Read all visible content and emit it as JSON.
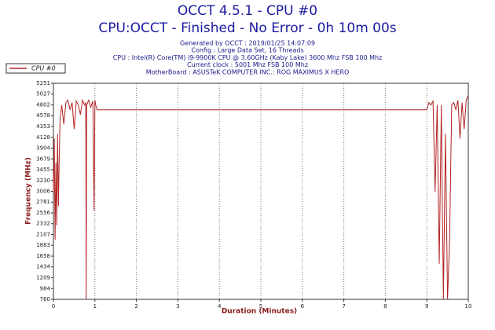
{
  "chart_data": {
    "type": "line",
    "title": "OCCT 4.5.1 - CPU #0",
    "subtitle": "CPU:OCCT - Finished - No Error - 0h 10m 00s",
    "info": [
      "Generated by OCCT : 2019/01/25 14:07:09",
      "Config : Large Data Set, 16 Threads",
      "CPU : Intel(R) Core(TM) i9-9900K CPU @ 3.60GHz (Kaby Lake) 3600 Mhz FSB 100 Mhz",
      "Current clock : 5001 Mhz FSB 100 Mhz",
      "MotherBoard : ASUSTeK COMPUTER INC.: ROG MAXIMUS X HERO"
    ],
    "x_label": "Duration (Minutes)",
    "y_label": "Frequency (MHz)",
    "x": [
      0,
      0.02,
      0.04,
      0.06,
      0.08,
      0.1,
      0.12,
      0.14,
      0.16,
      0.2,
      0.25,
      0.3,
      0.35,
      0.4,
      0.45,
      0.5,
      0.55,
      0.6,
      0.65,
      0.7,
      0.75,
      0.78,
      0.79,
      0.8,
      0.85,
      0.9,
      0.95,
      0.98,
      1.0,
      1.02,
      1.05,
      9.0,
      9.05,
      9.1,
      9.15,
      9.2,
      9.25,
      9.3,
      9.35,
      9.4,
      9.45,
      9.5,
      9.55,
      9.6,
      9.65,
      9.7,
      9.75,
      9.8,
      9.85,
      9.9,
      9.95,
      10
    ],
    "series": [
      {
        "name": "CPU #0",
        "color": "#b22222",
        "values": [
          3000,
          4100,
          2000,
          3600,
          2300,
          4200,
          2700,
          3700,
          4500,
          4800,
          4400,
          4850,
          4900,
          4700,
          4850,
          4300,
          4880,
          4800,
          4600,
          4900,
          4800,
          4850,
          760,
          4800,
          4900,
          4750,
          4880,
          2600,
          4900,
          4800,
          4700,
          4700,
          4850,
          4800,
          4880,
          3000,
          4800,
          1500,
          4800,
          760,
          4200,
          760,
          2000,
          4800,
          4850,
          4700,
          4900,
          4100,
          4850,
          4300,
          4900,
          5000
        ]
      }
    ],
    "xlim": [
      0,
      10
    ],
    "xticks": [
      0,
      1,
      2,
      3,
      4,
      5,
      6,
      7,
      8,
      9,
      10
    ],
    "ylim": [
      760,
      5251
    ],
    "yticks": [
      760,
      984,
      1209,
      1434,
      1658,
      1883,
      2107,
      2332,
      2556,
      2781,
      3006,
      3230,
      3455,
      3679,
      3904,
      4128,
      4353,
      4578,
      4802,
      5027,
      5251
    ],
    "grid": true,
    "legend": "top-left"
  }
}
